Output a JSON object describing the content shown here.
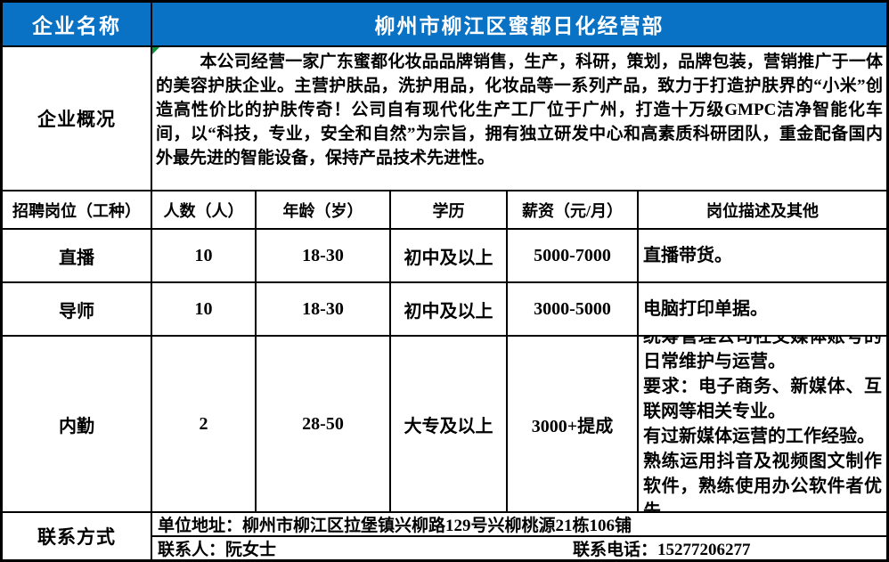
{
  "company": {
    "name_label": "企业名称",
    "name": "柳州市柳江区蜜都日化经营部",
    "profile_label": "企业概况",
    "profile": "本公司经营一家广东蜜都化妆品品牌销售，生产，科研，策划，品牌包装，营销推广于一体的美容护肤企业。主营护肤品，洗护用品，化妆品等一系列产品，致力于打造护肤界的“小米”创造高性价比的护肤传奇！公司自有现代化生产工厂位于广州，打造十万级GMPC洁净智能化车间，以“科技，专业，安全和自然”为宗旨，拥有独立研发中心和高素质科研团队，重金配备国内外最先进的智能设备，保持产品技术先进性。"
  },
  "table": {
    "headers": [
      "招聘岗位（工种）",
      "人数（人）",
      "年龄（岁）",
      "学历",
      "薪资（元/月）",
      "岗位描述及其他"
    ],
    "rows": [
      {
        "position": "直播",
        "count": "10",
        "age": "18-30",
        "education": "初中及以上",
        "salary": "5000-7000",
        "description": "直播带货。"
      },
      {
        "position": "导师",
        "count": "10",
        "age": "18-30",
        "education": "初中及以上",
        "salary": "3000-5000",
        "description": "电脑打印单据。"
      },
      {
        "position": "内勤",
        "count": "2",
        "age": "28-50",
        "education": "大专及以上",
        "salary": "3000+提成",
        "description": "统筹管理公司社交媒体账号的日常维护与运营。\n要求：电子商务、新媒体、互联网等相关专业。\n有过新媒体运营的工作经验。\n熟练运用抖音及视频图文制作软件，熟练使用办公软件者优先。"
      }
    ]
  },
  "contact": {
    "label": "联系方式",
    "address": "单位地址：柳州市柳江区拉堡镇兴柳路129号兴柳桃源21栋106铺",
    "person": "联系人：阮女士",
    "phone": "联系电话：15277206277"
  },
  "colors": {
    "header_blue": "#0a72c4",
    "flag_green": "#0c9639"
  }
}
